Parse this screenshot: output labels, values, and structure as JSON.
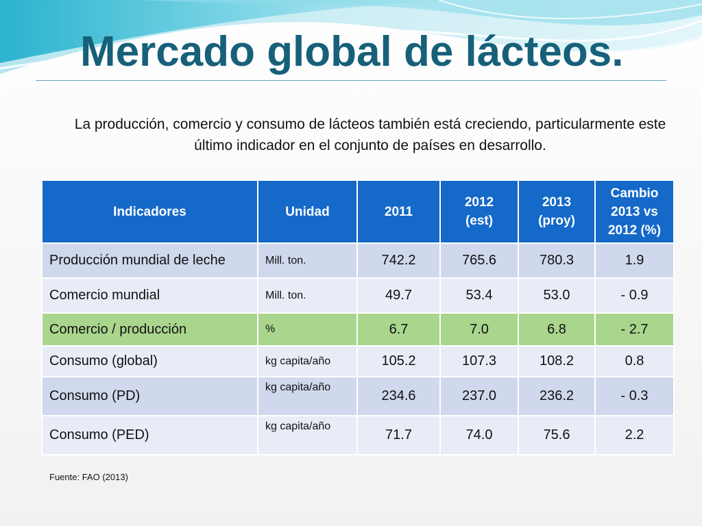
{
  "slide": {
    "title": "Mercado global de lácteos.",
    "subtitle": "La producción, comercio y consumo de lácteos también está creciendo, particularmente este último indicador en el conjunto de países en desarrollo.",
    "source": "Fuente: FAO (2013)",
    "colors": {
      "title": "#17607a",
      "header_bg": "#1469c9",
      "row_dark": "#cfd8ec",
      "row_light": "#e8ecf6",
      "row_highlight": "#a9d58d"
    }
  },
  "table": {
    "headers": [
      "Indicadores",
      "Unidad",
      "2011",
      "2012\n(est)",
      "2013\n(proy)",
      "Cambio\n2013 vs\n2012 (%)"
    ],
    "rows": [
      {
        "indicator": "Producción mundial de leche",
        "unit": "Mill. ton.",
        "y2011": "742.2",
        "y2012": "765.6",
        "y2013": "780.3",
        "change": "1.9"
      },
      {
        "indicator": "Comercio mundial",
        "unit": "Mill. ton.",
        "y2011": "49.7",
        "y2012": "53.4",
        "y2013": "53.0",
        "change": "- 0.9"
      },
      {
        "indicator": "Comercio / producción",
        "unit": "%",
        "y2011": "6.7",
        "y2012": "7.0",
        "y2013": "6.8",
        "change": "- 2.7"
      },
      {
        "indicator": "Consumo (global)",
        "unit": "kg capita/año",
        "y2011": "105.2",
        "y2012": "107.3",
        "y2013": "108.2",
        "change": "0.8"
      },
      {
        "indicator": "Consumo (PD)",
        "unit": "kg capita/año",
        "y2011": "234.6",
        "y2012": "237.0",
        "y2013": "236.2",
        "change": "- 0.3"
      },
      {
        "indicator": "Consumo (PED)",
        "unit": "kg capita/año",
        "y2011": "71.7",
        "y2012": "74.0",
        "y2013": "75.6",
        "change": "2.2"
      }
    ]
  }
}
